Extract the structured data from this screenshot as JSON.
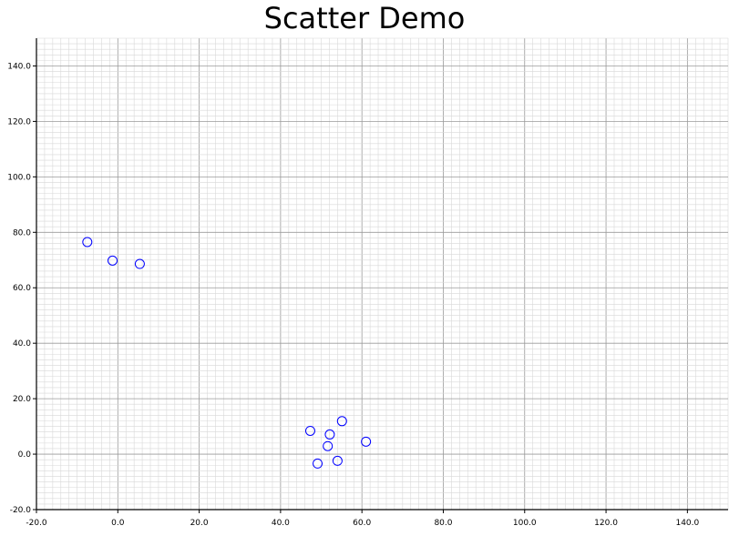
{
  "chart_data": {
    "type": "scatter",
    "title": "Scatter Demo",
    "xlabel": "",
    "ylabel": "",
    "xlim": [
      -20,
      150
    ],
    "ylim": [
      -20,
      150
    ],
    "x_ticks": [
      -20,
      0,
      20,
      40,
      60,
      80,
      100,
      120,
      140
    ],
    "y_ticks": [
      -20,
      0,
      20,
      40,
      60,
      80,
      100,
      120,
      140
    ],
    "x_tick_labels": [
      "-20.0",
      "0.0",
      "20.0",
      "40.0",
      "60.0",
      "80.0",
      "100.0",
      "120.0",
      "140.0"
    ],
    "y_tick_labels": [
      "-20.0",
      "0.0",
      "20.0",
      "40.0",
      "60.0",
      "80.0",
      "100.0",
      "120.0",
      "140.0"
    ],
    "grid": true,
    "marker": "open-circle",
    "marker_color": "#0000ff",
    "series": [
      {
        "points": [
          [
            -7.5,
            76.5
          ],
          [
            -1.3,
            69.8
          ],
          [
            5.4,
            68.6
          ],
          [
            47.3,
            8.4
          ],
          [
            55.1,
            11.9
          ],
          [
            52.1,
            7.1
          ],
          [
            51.6,
            2.9
          ],
          [
            61.0,
            4.5
          ],
          [
            49.1,
            -3.4
          ],
          [
            54.0,
            -2.4
          ]
        ]
      }
    ]
  }
}
